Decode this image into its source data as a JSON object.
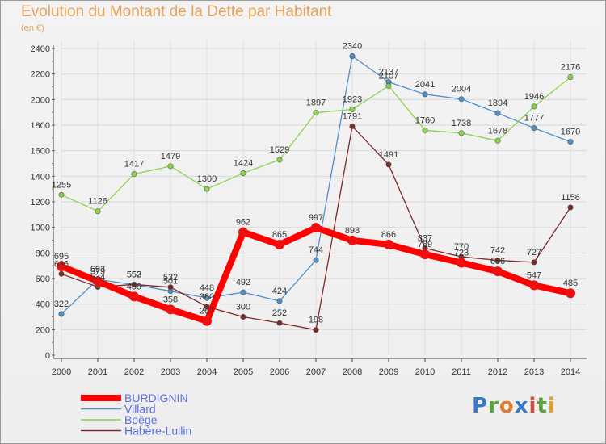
{
  "header": {
    "title": "Evolution du Montant de la Dette par Habitant",
    "unit": "(en €)"
  },
  "logo": {
    "letters": [
      "P",
      "r",
      "o",
      "x",
      "i",
      "t",
      "i"
    ],
    "colors": [
      "#3a78c8",
      "#5aa43a",
      "#e07a2a",
      "#3a78c8",
      "#d84a3a",
      "#5aa43a",
      "#e0a030"
    ]
  },
  "chart_data": {
    "type": "line",
    "title": "Evolution du Montant de la Dette par Habitant",
    "subtitle": "(en €)",
    "xlabel": "",
    "ylabel": "",
    "x": [
      "2000",
      "2001",
      "2002",
      "2003",
      "2004",
      "2005",
      "2006",
      "2007",
      "2008",
      "2009",
      "2010",
      "2011",
      "2012",
      "2013",
      "2014"
    ],
    "ylim": [
      0,
      2400
    ],
    "yticks": [
      0,
      200,
      400,
      600,
      800,
      1000,
      1200,
      1400,
      1600,
      1800,
      2000,
      2200,
      2400
    ],
    "grid": true,
    "legend_position": "bottom-left",
    "series": [
      {
        "name": "BURDIGNIN",
        "color": "#ff0000",
        "values": [
          695,
          579,
          459,
          358,
          267,
          962,
          865,
          997,
          898,
          866,
          789,
          723,
          656,
          547,
          485
        ]
      },
      {
        "name": "Villard",
        "color": "#4f90c9",
        "values": [
          322,
          593,
          552,
          501,
          448,
          492,
          424,
          744,
          2340,
          2137,
          2041,
          2004,
          1894,
          1777,
          1670
        ]
      },
      {
        "name": "Boëge",
        "color": "#8cd44e",
        "values": [
          1255,
          1126,
          1417,
          1479,
          1300,
          1424,
          1529,
          1897,
          1923,
          2107,
          1760,
          1738,
          1678,
          1946,
          2176
        ]
      },
      {
        "name": "Habère-Lullin",
        "color": "#7b2a2a",
        "values": [
          636,
          534,
          553,
          532,
          380,
          300,
          252,
          198,
          1791,
          1491,
          837,
          770,
          742,
          727,
          1156
        ]
      }
    ]
  }
}
